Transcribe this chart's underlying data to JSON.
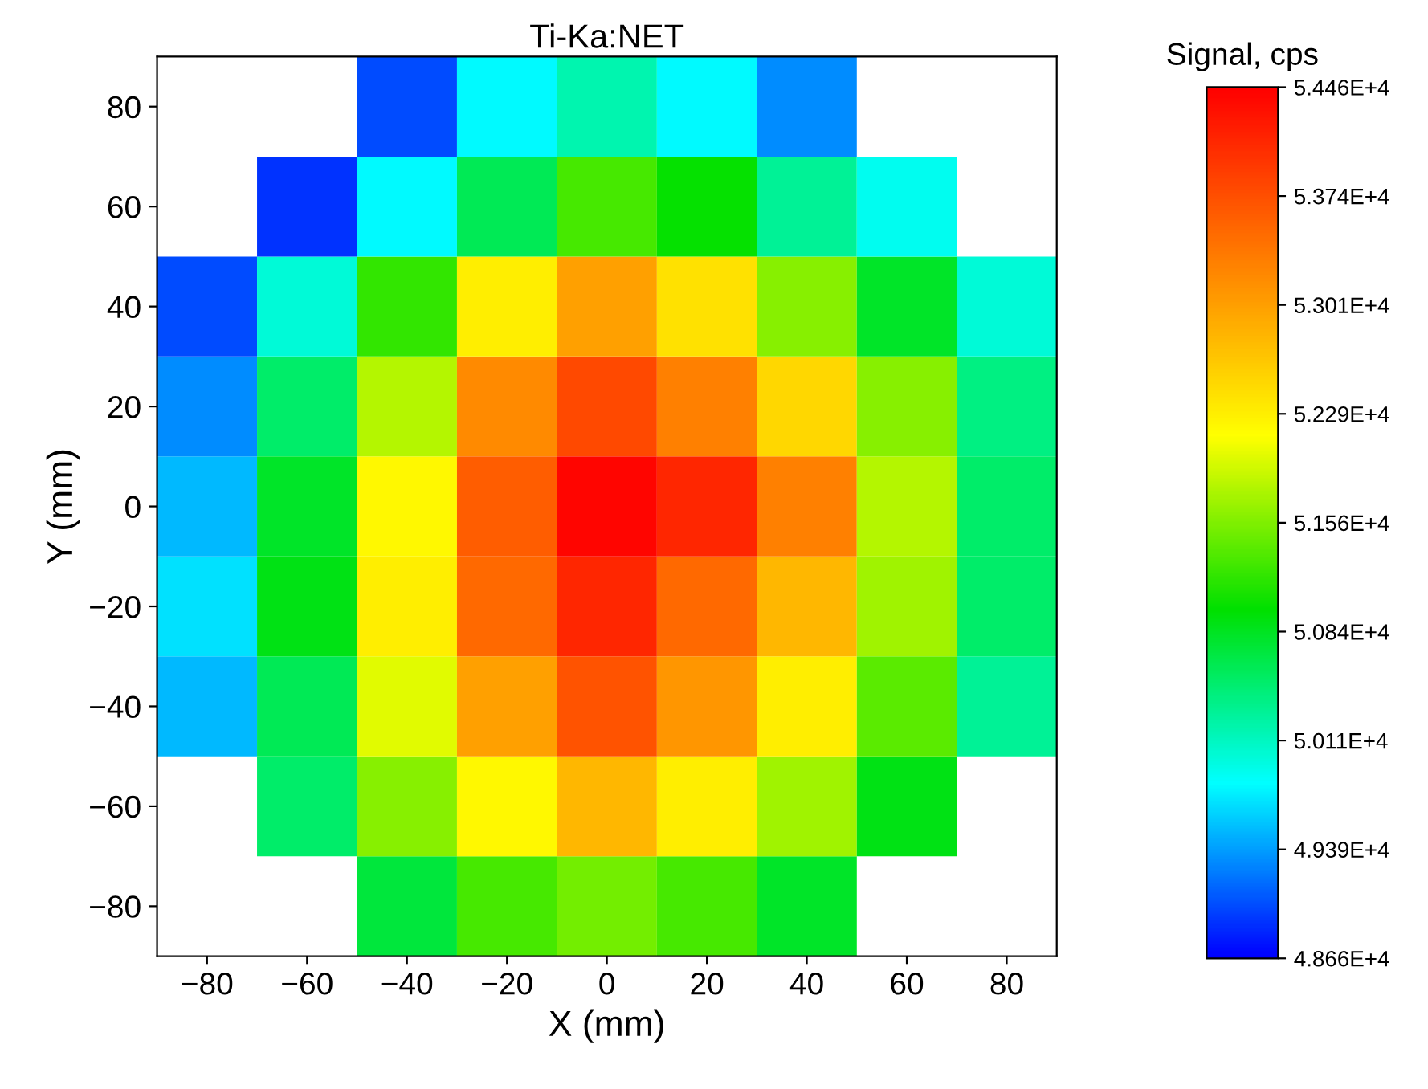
{
  "chart_data": {
    "type": "heatmap",
    "title": "Ti-Ka:NET",
    "xlabel": "X (mm)",
    "ylabel": "Y (mm)",
    "clabel": "Signal, cps",
    "categories": [
      "−80",
      "−60",
      "−40",
      "−20",
      "0",
      "20",
      "40",
      "60",
      "80"
    ],
    "y_categories": [
      "80",
      "60",
      "40",
      "20",
      "0",
      "−20",
      "−40",
      "−60",
      "−80"
    ],
    "cells": [
      [
        null,
        null,
        49000,
        49800,
        50200,
        49800,
        49300,
        null,
        null
      ],
      [
        null,
        48900,
        49800,
        50600,
        51300,
        51000,
        50300,
        49900,
        null
      ],
      [
        49000,
        50000,
        51200,
        52300,
        53000,
        52400,
        51600,
        50800,
        50000
      ],
      [
        49300,
        50500,
        51800,
        53200,
        53800,
        53300,
        52500,
        51600,
        50400
      ],
      [
        49500,
        50800,
        52200,
        53600,
        54400,
        54100,
        53300,
        51800,
        50500
      ],
      [
        49700,
        50900,
        52300,
        53500,
        54100,
        53500,
        52800,
        51700,
        50500
      ],
      [
        49500,
        50600,
        52000,
        53000,
        53700,
        53100,
        52300,
        51400,
        50300
      ],
      [
        null,
        50500,
        51600,
        52200,
        52800,
        52300,
        51700,
        50900,
        null
      ],
      [
        null,
        null,
        50700,
        51300,
        51500,
        51300,
        50800,
        null,
        null
      ]
    ],
    "clim": [
      48660,
      54460
    ],
    "cticks": [
      {
        "value": 48660,
        "label": "4.866E+4"
      },
      {
        "value": 49385,
        "label": "4.939E+4"
      },
      {
        "value": 50110,
        "label": "5.011E+4"
      },
      {
        "value": 50835,
        "label": "5.084E+4"
      },
      {
        "value": 51560,
        "label": "5.156E+4"
      },
      {
        "value": 52285,
        "label": "5.229E+4"
      },
      {
        "value": 53010,
        "label": "5.301E+4"
      },
      {
        "value": 53735,
        "label": "5.374E+4"
      },
      {
        "value": 54460,
        "label": "5.446E+4"
      }
    ]
  }
}
